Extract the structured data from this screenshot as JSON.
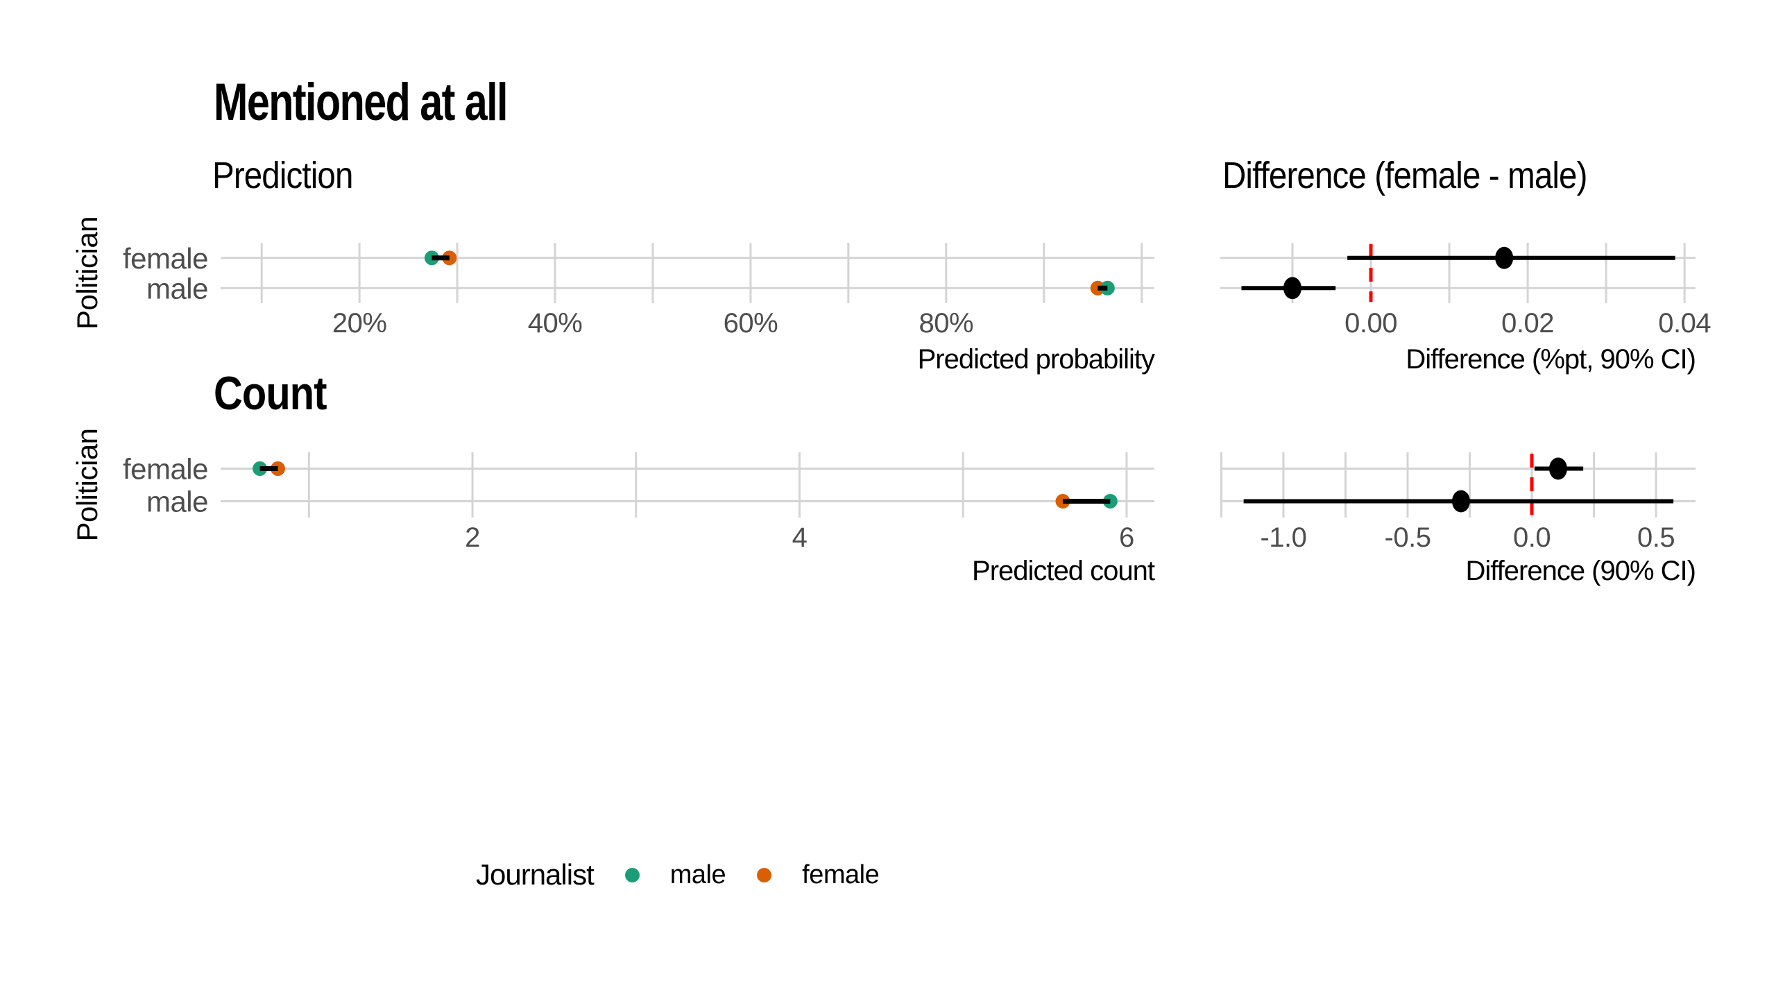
{
  "figure": {
    "title": "Mentioned at all"
  },
  "legend": {
    "title": "Journalist",
    "items": [
      {
        "label": "male",
        "color": "#1B9E77"
      },
      {
        "label": "female",
        "color": "#D95F02"
      }
    ]
  },
  "colors": {
    "journalist_male": "#1B9E77",
    "journalist_female": "#D95F02",
    "reference_line": "#FF0000",
    "gridline": "#D4D4D4",
    "axis_text": "#4D4D4D",
    "text": "#000000"
  },
  "chart_data": [
    {
      "id": "prediction-probability",
      "type": "dumbbell",
      "title": "Prediction",
      "xlabel": "Predicted probability",
      "ylabel": "Politician",
      "categories": [
        "female",
        "male"
      ],
      "series": [
        {
          "name": "male",
          "color": "#1B9E77",
          "values": [
            0.274,
            0.965
          ]
        },
        {
          "name": "female",
          "color": "#D95F02",
          "values": [
            0.292,
            0.955
          ]
        }
      ],
      "x_ticks": [
        0.2,
        0.4,
        0.6,
        0.8
      ],
      "x_tick_labels": [
        "20%",
        "40%",
        "60%",
        "80%"
      ],
      "gridlines": [
        0.1,
        0.2,
        0.3,
        0.4,
        0.5,
        0.6,
        0.7,
        0.8,
        0.9,
        1.0
      ],
      "xlim": [
        0.058,
        1.013
      ],
      "grid": true,
      "legend_position": "bottom"
    },
    {
      "id": "difference-probability",
      "type": "pointrange",
      "title": "Difference (female - male)",
      "xlabel": "Difference (%pt, 90% CI)",
      "categories": [
        "female",
        "male"
      ],
      "estimates": [
        0.017,
        -0.01
      ],
      "ci_low": [
        -0.003,
        -0.0165
      ],
      "ci_high": [
        0.0388,
        -0.0045
      ],
      "x_ticks": [
        0,
        0.02,
        0.04
      ],
      "x_tick_labels": [
        "0.00",
        "0.02",
        "0.04"
      ],
      "gridlines": [
        -0.01,
        0,
        0.01,
        0.02,
        0.03,
        0.04
      ],
      "ref_line": 0,
      "xlim": [
        -0.0192,
        0.0414
      ],
      "grid": true
    },
    {
      "id": "predicted-count",
      "type": "dumbbell",
      "title": "Count",
      "xlabel": "Predicted count",
      "ylabel": "Politician",
      "categories": [
        "female",
        "male"
      ],
      "series": [
        {
          "name": "male",
          "color": "#1B9E77",
          "values": [
            0.7,
            5.9
          ]
        },
        {
          "name": "female",
          "color": "#D95F02",
          "values": [
            0.81,
            5.61
          ]
        }
      ],
      "x_ticks": [
        2,
        4,
        6
      ],
      "x_tick_labels": [
        "2",
        "4",
        "6"
      ],
      "gridlines": [
        1,
        2,
        3,
        4,
        5,
        6
      ],
      "xlim": [
        0.46,
        6.17
      ],
      "grid": true
    },
    {
      "id": "difference-count",
      "type": "pointrange",
      "title": "",
      "xlabel": "Difference (90% CI)",
      "categories": [
        "female",
        "male"
      ],
      "estimates": [
        0.106,
        -0.285
      ],
      "ci_low": [
        0.011,
        -1.16
      ],
      "ci_high": [
        0.207,
        0.57
      ],
      "x_ticks": [
        -1.0,
        -0.5,
        0.0,
        0.5
      ],
      "x_tick_labels": [
        "-1.0",
        "-0.5",
        "0.0",
        "0.5"
      ],
      "gridlines": [
        -1.25,
        -1.0,
        -0.75,
        -0.5,
        -0.25,
        0,
        0.25,
        0.5
      ],
      "ref_line": 0,
      "xlim": [
        -1.254,
        0.659
      ],
      "grid": true
    }
  ]
}
